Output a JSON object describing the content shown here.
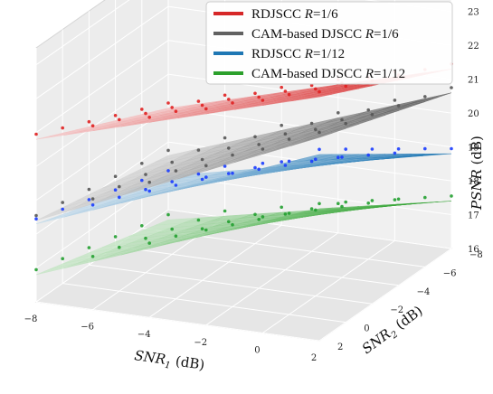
{
  "chart_data": {
    "type": "surface3d",
    "axes": {
      "x": {
        "label": "SNR",
        "sub": "1",
        "unit": " (dB)",
        "ticks": [
          -8,
          -6,
          -4,
          -2,
          0,
          2
        ],
        "range": [
          -8,
          2
        ]
      },
      "y": {
        "label": "SNR",
        "sub": "2",
        "unit": " (dB)",
        "ticks": [
          -8,
          -6,
          -4,
          -2,
          0,
          2
        ],
        "range": [
          -8,
          2
        ]
      },
      "z": {
        "label": "PSNR",
        "unit": " (dB)",
        "ticks": [
          16,
          17,
          18,
          19,
          20,
          21,
          22,
          23
        ],
        "range": [
          16,
          23.5
        ]
      }
    },
    "legend": {
      "position": "top-right",
      "entries": [
        {
          "label_a": "RDJSCC ",
          "label_r": "R",
          "label_b": "=1/6",
          "color": "#d62728"
        },
        {
          "label_a": "CAM-based DJSCC ",
          "label_r": "R",
          "label_b": "=1/6",
          "color": "#616161"
        },
        {
          "label_a": "RDJSCC ",
          "label_r": "R",
          "label_b": "=1/12",
          "color": "#1f77b4"
        },
        {
          "label_a": "CAM-based DJSCC ",
          "label_r": "R",
          "label_b": "=1/12",
          "color": "#2ca02c"
        }
      ]
    },
    "series": [
      {
        "name": "RDJSCC R=1/6",
        "color": "#d62728",
        "dot": "#e02020",
        "corners": {
          "x_min_y_min": 19.0,
          "x_max_y_min": 21.3,
          "x_min_y_max": 20.8,
          "x_max_y_max": 23.2
        }
      },
      {
        "name": "CAM-based DJSCC R=1/6",
        "color": "#616161",
        "dot": "#555555",
        "corners": {
          "x_min_y_min": 17.6,
          "x_max_y_min": 20.6,
          "x_min_y_max": 18.4,
          "x_max_y_max": 22.0
        }
      },
      {
        "name": "RDJSCC R=1/12",
        "color": "#1f77b4",
        "dot": "#1a3cff",
        "corners": {
          "x_min_y_min": 17.0,
          "x_max_y_min": 18.8,
          "x_min_y_max": 18.3,
          "x_max_y_max": 21.5
        }
      },
      {
        "name": "CAM-based DJSCC R=1/12",
        "color": "#2ca02c",
        "dot": "#22a030",
        "corners": {
          "x_min_y_min": 15.7,
          "x_max_y_min": 17.4,
          "x_min_y_max": 16.8,
          "x_max_y_max": 19.9
        }
      }
    ]
  }
}
